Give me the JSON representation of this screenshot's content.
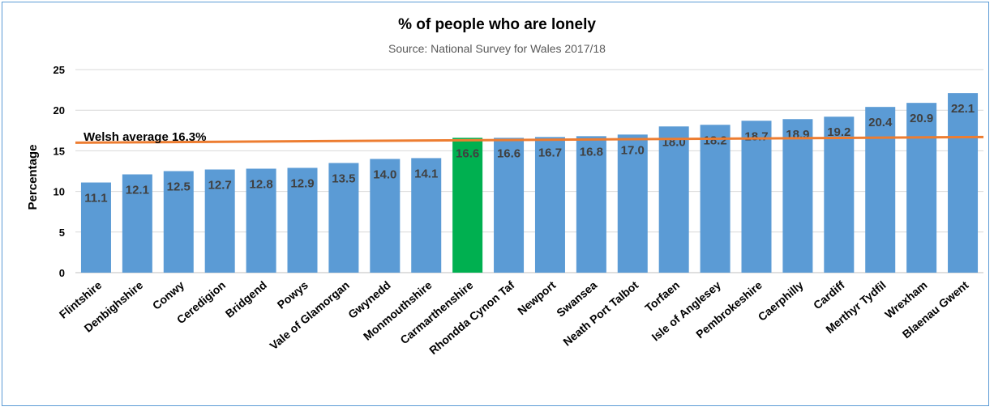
{
  "chart_data": {
    "type": "bar",
    "title": "% of people who are lonely",
    "subtitle": "Source: National Survey for Wales 2017/18",
    "xlabel": "",
    "ylabel": "Percentage",
    "ylim": [
      0,
      25
    ],
    "yticks": [
      0,
      5,
      10,
      15,
      20,
      25
    ],
    "grid": true,
    "categories": [
      "Flintshire",
      "Denbighshire",
      "Conwy",
      "Ceredigion",
      "Bridgend",
      "Powys",
      "Vale of Glamorgan",
      "Gwynedd",
      "Monmouthshire",
      "Carmarthenshire",
      "Rhondda Cynon Taf",
      "Newport",
      "Swansea",
      "Neath Port Talbot",
      "Torfaen",
      "Isle of Anglesey",
      "Pembrokeshire",
      "Caerphilly",
      "Cardiff",
      "Merthyr Tydfil",
      "Wrexham",
      "Blaenau Gwent"
    ],
    "values": [
      11.1,
      12.1,
      12.5,
      12.7,
      12.8,
      12.9,
      13.5,
      14.0,
      14.1,
      16.6,
      16.6,
      16.7,
      16.8,
      17.0,
      18.0,
      18.2,
      18.7,
      18.9,
      19.2,
      20.4,
      20.9,
      22.1
    ],
    "data_labels": [
      "11.1",
      "12.1",
      "12.5",
      "12.7",
      "12.8",
      "12.9",
      "13.5",
      "14.0",
      "14.1",
      "16.6",
      "16.6",
      "16.7",
      "16.8",
      "17.0",
      "18.0",
      "18.2",
      "18.7",
      "18.9",
      "19.2",
      "20.4",
      "20.9",
      "22.1"
    ],
    "highlight_category": "Carmarthenshire",
    "colors": {
      "bar": "#5b9bd5",
      "highlight": "#00b050",
      "average_line": "#ed7d31",
      "grid": "#d9d9d9"
    },
    "reference_line": {
      "label": "Welsh average 16.3%",
      "value": 16.3
    }
  }
}
